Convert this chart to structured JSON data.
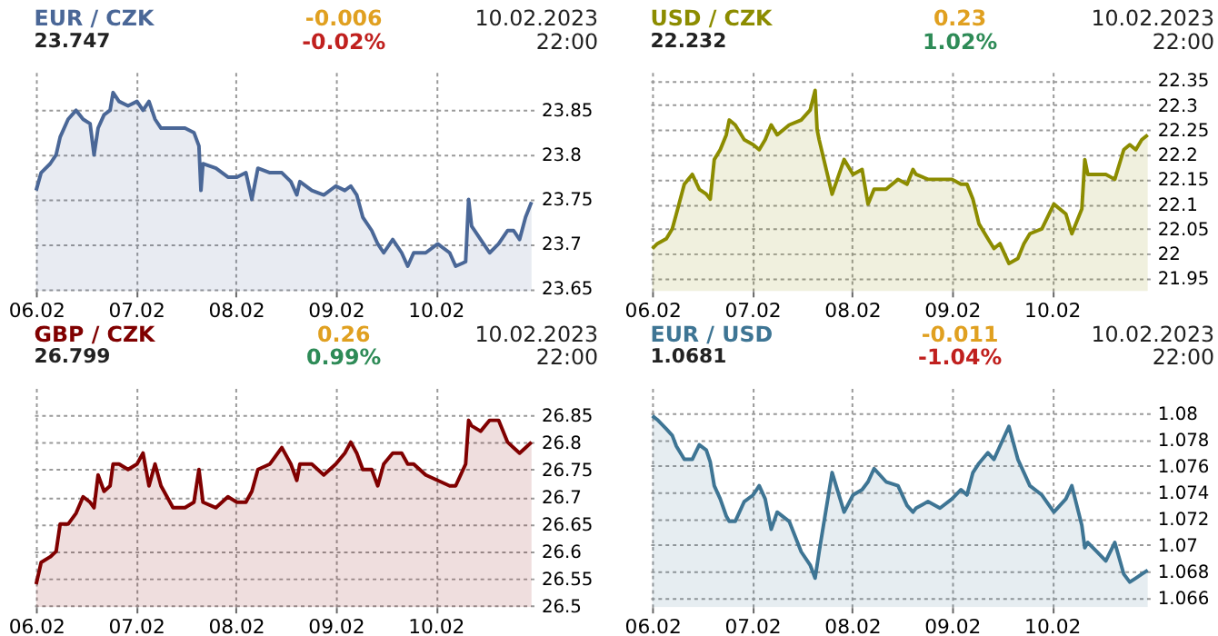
{
  "chart_data": [
    {
      "type": "area",
      "title": "EUR / CZK",
      "subtitle": "23.747",
      "annotations": [
        "-0.006",
        "-0.02%",
        "10.02.2023",
        "22:00"
      ],
      "xlim": [
        "2023-02-05T23:31",
        "2023-02-10T23:31"
      ],
      "xticks": [
        {
          "value": "2023-02-06T00:00",
          "label": "06.02"
        },
        {
          "value": "2023-02-07T00:00",
          "label": "07.02"
        },
        {
          "value": "2023-02-08T00:00",
          "label": "08.02"
        },
        {
          "value": "2023-02-09T00:00",
          "label": "09.02"
        },
        {
          "value": "2023-02-10T00:00",
          "label": "10.02"
        }
      ],
      "ylim": [
        23.647,
        23.893
      ],
      "yticks": [
        23.65,
        23.7,
        23.75,
        23.8,
        23.85
      ],
      "grid": true,
      "legend": false,
      "x": [
        "2023-02-06T00:00",
        "2023-02-06T01:12",
        "2023-02-06T03:22",
        "2023-02-06T04:48",
        "2023-02-06T05:46",
        "2023-02-06T07:41",
        "2023-02-06T09:36",
        "2023-02-06T11:17",
        "2023-02-06T12:58",
        "2023-02-06T13:55",
        "2023-02-06T14:53",
        "2023-02-06T16:19",
        "2023-02-06T17:46",
        "2023-02-06T18:29",
        "2023-02-06T19:55",
        "2023-02-06T22:05",
        "2023-02-07T00:14",
        "2023-02-07T01:41",
        "2023-02-07T03:07",
        "2023-02-07T04:34",
        "2023-02-07T06:00",
        "2023-02-07T08:53",
        "2023-02-07T11:46",
        "2023-02-07T13:55",
        "2023-02-07T15:07",
        "2023-02-07T15:36",
        "2023-02-07T16:05",
        "2023-02-07T19:12",
        "2023-02-07T22:05",
        "2023-02-08T00:14",
        "2023-02-08T02:24",
        "2023-02-08T03:50",
        "2023-02-08T05:17",
        "2023-02-08T08:10",
        "2023-02-08T11:02",
        "2023-02-08T13:12",
        "2023-02-08T14:38",
        "2023-02-08T15:22",
        "2023-02-08T18:14",
        "2023-02-08T21:07",
        "2023-02-09T00:00",
        "2023-02-09T02:10",
        "2023-02-09T03:36",
        "2023-02-09T05:02",
        "2023-02-09T06:29",
        "2023-02-09T08:38",
        "2023-02-09T10:05",
        "2023-02-09T11:31",
        "2023-02-09T13:41",
        "2023-02-09T15:50",
        "2023-02-09T17:17",
        "2023-02-09T18:43",
        "2023-02-09T21:36",
        "2023-02-10T00:29",
        "2023-02-10T03:22",
        "2023-02-10T04:48",
        "2023-02-10T07:12",
        "2023-02-10T07:55",
        "2023-02-10T08:38",
        "2023-02-10T10:48",
        "2023-02-10T12:58",
        "2023-02-10T15:07",
        "2023-02-10T17:17",
        "2023-02-10T18:43",
        "2023-02-10T20:10",
        "2023-02-10T21:36",
        "2023-02-10T23:02"
      ],
      "series": [
        {
          "color": "#4a6797",
          "values": [
            23.76,
            23.78,
            23.79,
            23.8,
            23.82,
            23.84,
            23.85,
            23.84,
            23.835,
            23.8,
            23.83,
            23.845,
            23.85,
            23.87,
            23.86,
            23.855,
            23.86,
            23.85,
            23.86,
            23.84,
            23.83,
            23.83,
            23.83,
            23.825,
            23.81,
            23.76,
            23.79,
            23.785,
            23.775,
            23.775,
            23.78,
            23.75,
            23.785,
            23.78,
            23.78,
            23.77,
            23.755,
            23.77,
            23.76,
            23.755,
            23.765,
            23.76,
            23.765,
            23.755,
            23.73,
            23.715,
            23.7,
            23.69,
            23.705,
            23.69,
            23.675,
            23.69,
            23.69,
            23.7,
            23.69,
            23.675,
            23.68,
            23.75,
            23.72,
            23.705,
            23.69,
            23.7,
            23.715,
            23.715,
            23.705,
            23.73,
            23.747
          ]
        }
      ]
    },
    {
      "type": "area",
      "title": "USD / CZK",
      "subtitle": "22.232",
      "annotations": [
        "0.23",
        "1.02%",
        "10.02.2023",
        "22:00"
      ],
      "xlim": [
        "2023-02-05T23:31",
        "2023-02-10T23:31"
      ],
      "xticks": [
        {
          "value": "2023-02-06T00:00",
          "label": "06.02"
        },
        {
          "value": "2023-02-07T00:00",
          "label": "07.02"
        },
        {
          "value": "2023-02-08T00:00",
          "label": "08.02"
        },
        {
          "value": "2023-02-09T00:00",
          "label": "09.02"
        },
        {
          "value": "2023-02-10T00:00",
          "label": "10.02"
        }
      ],
      "ylim": [
        21.924,
        22.367
      ],
      "yticks": [
        21.95,
        22,
        22.05,
        22.1,
        22.15,
        22.2,
        22.25,
        22.3,
        22.35
      ],
      "grid": true,
      "legend": false,
      "x": [
        "2023-02-06T00:00",
        "2023-02-06T01:12",
        "2023-02-06T03:22",
        "2023-02-06T04:48",
        "2023-02-06T05:46",
        "2023-02-06T07:41",
        "2023-02-06T09:36",
        "2023-02-06T11:17",
        "2023-02-06T12:58",
        "2023-02-06T13:55",
        "2023-02-06T14:53",
        "2023-02-06T16:19",
        "2023-02-06T17:46",
        "2023-02-06T18:29",
        "2023-02-06T19:55",
        "2023-02-06T22:05",
        "2023-02-07T00:14",
        "2023-02-07T01:41",
        "2023-02-07T03:07",
        "2023-02-07T04:34",
        "2023-02-07T06:00",
        "2023-02-07T08:53",
        "2023-02-07T11:46",
        "2023-02-07T13:55",
        "2023-02-07T15:07",
        "2023-02-07T15:36",
        "2023-02-07T16:05",
        "2023-02-07T19:12",
        "2023-02-07T22:05",
        "2023-02-08T00:14",
        "2023-02-08T02:24",
        "2023-02-08T03:50",
        "2023-02-08T05:17",
        "2023-02-08T08:10",
        "2023-02-08T11:02",
        "2023-02-08T13:12",
        "2023-02-08T14:38",
        "2023-02-08T15:22",
        "2023-02-08T18:14",
        "2023-02-08T21:07",
        "2023-02-09T00:00",
        "2023-02-09T02:10",
        "2023-02-09T03:36",
        "2023-02-09T05:02",
        "2023-02-09T06:29",
        "2023-02-09T08:38",
        "2023-02-09T10:05",
        "2023-02-09T11:31",
        "2023-02-09T13:41",
        "2023-02-09T15:50",
        "2023-02-09T17:17",
        "2023-02-09T18:43",
        "2023-02-09T21:36",
        "2023-02-10T00:29",
        "2023-02-10T03:22",
        "2023-02-10T04:48",
        "2023-02-10T07:12",
        "2023-02-10T07:55",
        "2023-02-10T08:38",
        "2023-02-10T10:48",
        "2023-02-10T12:58",
        "2023-02-10T15:07",
        "2023-02-10T17:17",
        "2023-02-10T18:43",
        "2023-02-10T20:10",
        "2023-02-10T21:36",
        "2023-02-10T23:02"
      ],
      "series": [
        {
          "color": "#8c8c00",
          "values": [
            22.01,
            22.02,
            22.03,
            22.05,
            22.08,
            22.14,
            22.16,
            22.13,
            22.12,
            22.11,
            22.19,
            22.21,
            22.24,
            22.27,
            22.26,
            22.23,
            22.22,
            22.21,
            22.23,
            22.26,
            22.24,
            22.26,
            22.27,
            22.29,
            22.33,
            22.25,
            22.23,
            22.12,
            22.19,
            22.16,
            22.17,
            22.1,
            22.13,
            22.13,
            22.15,
            22.14,
            22.17,
            22.16,
            22.15,
            22.15,
            22.15,
            22.14,
            22.14,
            22.11,
            22.06,
            22.03,
            22.01,
            22.02,
            21.98,
            21.99,
            22.02,
            22.04,
            22.05,
            22.1,
            22.08,
            22.04,
            22.09,
            22.19,
            22.16,
            22.16,
            22.16,
            22.15,
            22.21,
            22.22,
            22.21,
            22.23,
            22.24
          ]
        }
      ]
    },
    {
      "type": "area",
      "title": "GBP / CZK",
      "subtitle": "26.799",
      "annotations": [
        "0.26",
        "0.99%",
        "10.02.2023",
        "22:00"
      ],
      "xlim": [
        "2023-02-05T23:31",
        "2023-02-10T23:31"
      ],
      "xticks": [
        {
          "value": "2023-02-06T00:00",
          "label": "06.02"
        },
        {
          "value": "2023-02-07T00:00",
          "label": "07.02"
        },
        {
          "value": "2023-02-08T00:00",
          "label": "08.02"
        },
        {
          "value": "2023-02-09T00:00",
          "label": "09.02"
        },
        {
          "value": "2023-02-10T00:00",
          "label": "10.02"
        }
      ],
      "ylim": [
        26.498,
        26.899
      ],
      "yticks": [
        26.5,
        26.55,
        26.6,
        26.65,
        26.7,
        26.75,
        26.8,
        26.85
      ],
      "grid": true,
      "legend": false,
      "x": [
        "2023-02-06T00:00",
        "2023-02-06T01:12",
        "2023-02-06T03:22",
        "2023-02-06T04:48",
        "2023-02-06T05:46",
        "2023-02-06T07:41",
        "2023-02-06T09:36",
        "2023-02-06T11:17",
        "2023-02-06T12:58",
        "2023-02-06T13:55",
        "2023-02-06T14:53",
        "2023-02-06T16:19",
        "2023-02-06T17:46",
        "2023-02-06T18:29",
        "2023-02-06T19:55",
        "2023-02-06T22:05",
        "2023-02-07T00:14",
        "2023-02-07T01:41",
        "2023-02-07T03:07",
        "2023-02-07T04:34",
        "2023-02-07T06:00",
        "2023-02-07T08:53",
        "2023-02-07T11:46",
        "2023-02-07T13:55",
        "2023-02-07T15:07",
        "2023-02-07T15:36",
        "2023-02-07T16:05",
        "2023-02-07T19:12",
        "2023-02-07T22:05",
        "2023-02-08T00:14",
        "2023-02-08T02:24",
        "2023-02-08T03:50",
        "2023-02-08T05:17",
        "2023-02-08T08:10",
        "2023-02-08T11:02",
        "2023-02-08T13:12",
        "2023-02-08T14:38",
        "2023-02-08T15:22",
        "2023-02-08T18:14",
        "2023-02-08T21:07",
        "2023-02-09T00:00",
        "2023-02-09T02:10",
        "2023-02-09T03:36",
        "2023-02-09T05:02",
        "2023-02-09T06:29",
        "2023-02-09T08:38",
        "2023-02-09T10:05",
        "2023-02-09T11:31",
        "2023-02-09T13:41",
        "2023-02-09T15:50",
        "2023-02-09T17:17",
        "2023-02-09T18:43",
        "2023-02-09T21:36",
        "2023-02-10T00:29",
        "2023-02-10T03:22",
        "2023-02-10T04:48",
        "2023-02-10T07:12",
        "2023-02-10T07:55",
        "2023-02-10T08:38",
        "2023-02-10T10:48",
        "2023-02-10T12:58",
        "2023-02-10T15:07",
        "2023-02-10T17:17",
        "2023-02-10T18:43",
        "2023-02-10T20:10",
        "2023-02-10T21:36",
        "2023-02-10T23:02"
      ],
      "series": [
        {
          "color": "#800000",
          "values": [
            26.54,
            26.58,
            26.59,
            26.6,
            26.65,
            26.65,
            26.67,
            26.7,
            26.69,
            26.68,
            26.74,
            26.71,
            26.72,
            26.76,
            26.76,
            26.75,
            26.76,
            26.78,
            26.72,
            26.76,
            26.72,
            26.68,
            26.68,
            26.69,
            26.75,
            26.72,
            26.69,
            26.68,
            26.7,
            26.69,
            26.69,
            26.71,
            26.75,
            26.76,
            26.79,
            26.76,
            26.73,
            26.76,
            26.76,
            26.74,
            26.76,
            26.78,
            26.8,
            26.78,
            26.75,
            26.75,
            26.72,
            26.76,
            26.78,
            26.78,
            26.76,
            26.76,
            26.74,
            26.73,
            26.72,
            26.72,
            26.76,
            26.84,
            26.83,
            26.82,
            26.84,
            26.84,
            26.8,
            26.79,
            26.78,
            26.79,
            26.8
          ]
        }
      ]
    },
    {
      "type": "area",
      "title": "EUR / USD",
      "subtitle": "1.0681",
      "annotations": [
        "-0.011",
        "-1.04%",
        "10.02.2023",
        "22:00"
      ],
      "xlim": [
        "2023-02-05T23:31",
        "2023-02-10T23:31"
      ],
      "xticks": [
        {
          "value": "2023-02-06T00:00",
          "label": "06.02"
        },
        {
          "value": "2023-02-07T00:00",
          "label": "07.02"
        },
        {
          "value": "2023-02-08T00:00",
          "label": "08.02"
        },
        {
          "value": "2023-02-09T00:00",
          "label": "09.02"
        },
        {
          "value": "2023-02-10T00:00",
          "label": "10.02"
        }
      ],
      "ylim": [
        1.0653,
        1.0819
      ],
      "yticks": [
        1.066,
        1.068,
        1.07,
        1.072,
        1.074,
        1.076,
        1.078,
        1.08
      ],
      "grid": true,
      "legend": false,
      "x": [
        "2023-02-06T00:00",
        "2023-02-06T01:12",
        "2023-02-06T03:22",
        "2023-02-06T04:48",
        "2023-02-06T05:46",
        "2023-02-06T07:41",
        "2023-02-06T09:36",
        "2023-02-06T11:17",
        "2023-02-06T12:58",
        "2023-02-06T13:55",
        "2023-02-06T14:53",
        "2023-02-06T16:19",
        "2023-02-06T17:46",
        "2023-02-06T18:29",
        "2023-02-06T19:55",
        "2023-02-06T22:05",
        "2023-02-07T00:14",
        "2023-02-07T01:41",
        "2023-02-07T03:07",
        "2023-02-07T04:34",
        "2023-02-07T06:00",
        "2023-02-07T08:53",
        "2023-02-07T11:46",
        "2023-02-07T13:55",
        "2023-02-07T15:07",
        "2023-02-07T15:36",
        "2023-02-07T16:05",
        "2023-02-07T19:12",
        "2023-02-07T22:05",
        "2023-02-08T00:14",
        "2023-02-08T02:24",
        "2023-02-08T03:50",
        "2023-02-08T05:17",
        "2023-02-08T08:10",
        "2023-02-08T11:02",
        "2023-02-08T13:12",
        "2023-02-08T14:38",
        "2023-02-08T15:22",
        "2023-02-08T18:14",
        "2023-02-08T21:07",
        "2023-02-09T00:00",
        "2023-02-09T02:10",
        "2023-02-09T03:36",
        "2023-02-09T05:02",
        "2023-02-09T06:29",
        "2023-02-09T08:38",
        "2023-02-09T10:05",
        "2023-02-09T11:31",
        "2023-02-09T13:41",
        "2023-02-09T15:50",
        "2023-02-09T17:17",
        "2023-02-09T18:43",
        "2023-02-09T21:36",
        "2023-02-10T00:29",
        "2023-02-10T03:22",
        "2023-02-10T04:48",
        "2023-02-10T07:12",
        "2023-02-10T07:55",
        "2023-02-10T08:38",
        "2023-02-10T10:48",
        "2023-02-10T12:58",
        "2023-02-10T15:07",
        "2023-02-10T17:17",
        "2023-02-10T18:43",
        "2023-02-10T20:10",
        "2023-02-10T21:36",
        "2023-02-10T23:02"
      ],
      "series": [
        {
          "color": "#3e7594",
          "values": [
            1.0798,
            1.0795,
            1.0788,
            1.0783,
            1.0775,
            1.0765,
            1.0765,
            1.0776,
            1.0772,
            1.0763,
            1.0745,
            1.0735,
            1.0722,
            1.0718,
            1.0718,
            1.0733,
            1.0738,
            1.0745,
            1.0735,
            1.0712,
            1.0725,
            1.0718,
            1.0695,
            1.0685,
            1.0675,
            1.0685,
            1.0695,
            1.0755,
            1.0725,
            1.0738,
            1.0742,
            1.0748,
            1.0758,
            1.0748,
            1.0745,
            1.073,
            1.0725,
            1.0728,
            1.0733,
            1.0728,
            1.0735,
            1.0742,
            1.0738,
            1.0755,
            1.0762,
            1.077,
            1.0765,
            1.0775,
            1.079,
            1.0765,
            1.0755,
            1.0745,
            1.0738,
            1.0725,
            1.0735,
            1.0745,
            1.0715,
            1.0698,
            1.0702,
            1.0695,
            1.0688,
            1.0702,
            1.0678,
            1.0672,
            1.0675,
            1.0678,
            1.0681
          ]
        }
      ]
    }
  ]
}
